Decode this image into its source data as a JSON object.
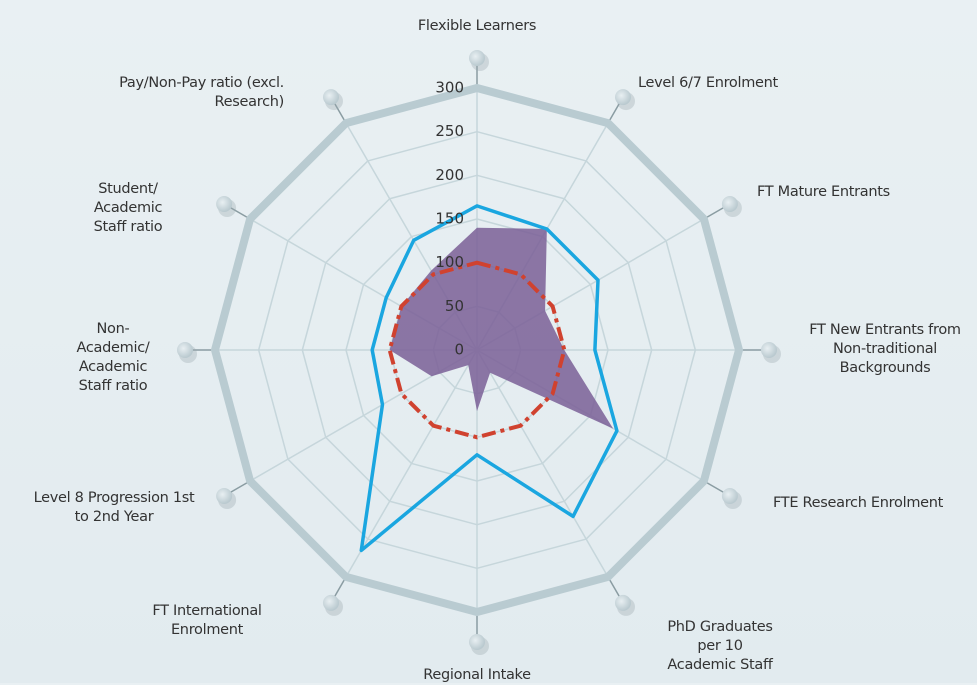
{
  "chart_data": {
    "type": "radar",
    "categories": [
      "Flexible Learners",
      "Level 6/7 Enrolment",
      "FT Mature Entrants",
      "FT New Entrants from Non-traditional Backgrounds",
      "FTE Research Enrolment",
      "PhD Graduates per 10 Academic Staff",
      "Regional Intake",
      "FT International Enrolment",
      "Level 8 Progression 1st to 2nd Year",
      "Non-Academic/ Academic Staff ratio",
      "Student/ Academic Staff ratio",
      "Pay/Non-Pay ratio (excl. Research)"
    ],
    "rlim": [
      0,
      300
    ],
    "rticks": [
      0,
      50,
      100,
      150,
      200,
      250,
      300
    ],
    "grid": true,
    "series": [
      {
        "color": "#7a5f96",
        "fill": true,
        "values": [
          140,
          160,
          90,
          100,
          180,
          30,
          70,
          20,
          60,
          100,
          100,
          105
        ]
      },
      {
        "color": "#1aa6e0",
        "fill": false,
        "values": [
          165,
          160,
          160,
          135,
          185,
          220,
          120,
          265,
          125,
          120,
          120,
          145
        ]
      },
      {
        "color": "#d0422f",
        "fill": false,
        "dashed": true,
        "values": [
          100,
          100,
          100,
          100,
          100,
          100,
          100,
          100,
          100,
          100,
          100,
          100
        ]
      }
    ]
  }
}
